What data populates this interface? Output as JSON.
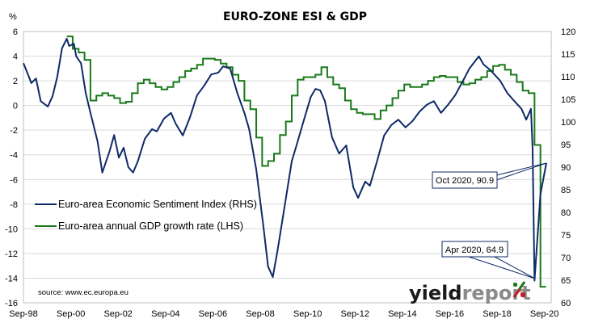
{
  "chart_data": {
    "type": "line",
    "title": "EURO-ZONE ESI & GDP",
    "left_axis": {
      "unit_label": "%",
      "range": [
        -16,
        6
      ],
      "ticks": [
        "6",
        "4",
        "2",
        "0",
        "-2",
        "-4",
        "-6",
        "-8",
        "-10",
        "-12",
        "-14",
        "-16"
      ],
      "tick_values": [
        6,
        4,
        2,
        0,
        -2,
        -4,
        -6,
        -8,
        -10,
        -12,
        -14,
        -16
      ]
    },
    "right_axis": {
      "range": [
        60,
        120
      ],
      "ticks": [
        "120",
        "115",
        "110",
        "105",
        "100",
        "95",
        "90",
        "85",
        "80",
        "75",
        "70",
        "65",
        "60"
      ],
      "tick_values": [
        120,
        115,
        110,
        105,
        100,
        95,
        90,
        85,
        80,
        75,
        70,
        65,
        60
      ]
    },
    "x_axis": {
      "range": [
        1998.67,
        2020.75
      ],
      "ticks": [
        "Sep-98",
        "Sep-00",
        "Sep-02",
        "Sep-04",
        "Sep-06",
        "Sep-08",
        "Sep-10",
        "Sep-12",
        "Sep-14",
        "Sep-16",
        "Sep-18",
        "Sep-20"
      ],
      "tick_values": [
        1998.67,
        2000.67,
        2002.67,
        2004.67,
        2006.67,
        2008.67,
        2010.67,
        2012.67,
        2014.67,
        2016.67,
        2018.67,
        2020.67
      ]
    },
    "grid": true,
    "legend_position": "left-middle",
    "series": [
      {
        "name": "Euro-area Economic Sentiment Index (RHS)",
        "axis": "right",
        "color": "#0f2a66",
        "x": [
          1998.67,
          1998.9,
          1999.0,
          1999.2,
          1999.4,
          1999.7,
          1999.9,
          2000.1,
          2000.3,
          2000.5,
          2000.6,
          2000.8,
          2000.9,
          2001.1,
          2001.3,
          2001.5,
          2001.8,
          2002.0,
          2002.3,
          2002.5,
          2002.7,
          2002.9,
          2003.1,
          2003.3,
          2003.5,
          2003.8,
          2004.1,
          2004.3,
          2004.6,
          2004.9,
          2005.1,
          2005.4,
          2005.7,
          2006.0,
          2006.3,
          2006.6,
          2006.9,
          2007.1,
          2007.4,
          2007.7,
          2008.0,
          2008.2,
          2008.5,
          2008.8,
          2009.0,
          2009.2,
          2009.4,
          2009.7,
          2010.0,
          2010.2,
          2010.5,
          2010.8,
          2011.0,
          2011.2,
          2011.4,
          2011.7,
          2012.0,
          2012.3,
          2012.6,
          2012.8,
          2013.1,
          2013.3,
          2013.6,
          2013.9,
          2014.2,
          2014.5,
          2014.8,
          2015.1,
          2015.4,
          2015.7,
          2016.0,
          2016.3,
          2016.6,
          2016.9,
          2017.2,
          2017.5,
          2017.9,
          2018.1,
          2018.4,
          2018.8,
          2019.1,
          2019.4,
          2019.7,
          2019.9,
          2020.1,
          2020.17,
          2020.25,
          2020.5,
          2020.75
        ],
        "values": [
          113.0,
          110.0,
          108.6,
          109.6,
          104.6,
          103.4,
          105.7,
          110.0,
          116.3,
          118.4,
          116.8,
          117.3,
          114.5,
          113.0,
          106.4,
          102.0,
          95.7,
          88.8,
          93.4,
          97.1,
          92.1,
          94.3,
          90.0,
          88.8,
          91.3,
          96.3,
          98.4,
          97.9,
          100.7,
          102.0,
          99.6,
          97.0,
          101.0,
          105.9,
          108.0,
          110.5,
          110.9,
          112.3,
          111.8,
          106.4,
          102.0,
          98.4,
          89.5,
          77.0,
          68.0,
          65.7,
          71.6,
          81.4,
          91.3,
          94.8,
          100.2,
          105.5,
          107.3,
          107.0,
          104.6,
          96.6,
          93.0,
          94.8,
          85.5,
          83.2,
          86.8,
          85.9,
          91.3,
          97.0,
          99.3,
          100.5,
          98.8,
          100.2,
          102.3,
          103.8,
          104.6,
          102.0,
          103.8,
          105.9,
          108.8,
          111.8,
          114.5,
          112.7,
          111.4,
          109.1,
          106.4,
          104.6,
          102.9,
          100.5,
          102.9,
          94.0,
          64.9,
          84.0,
          90.9
        ]
      },
      {
        "name": "Euro-area annual GDP growth rate (LHS)",
        "axis": "left",
        "color": "#1a7a1a",
        "step": true,
        "x": [
          2000.5,
          2000.75,
          2001.0,
          2001.25,
          2001.5,
          2001.75,
          2002.0,
          2002.25,
          2002.5,
          2002.75,
          2003.0,
          2003.25,
          2003.5,
          2003.75,
          2004.0,
          2004.25,
          2004.5,
          2004.75,
          2005.0,
          2005.25,
          2005.5,
          2005.75,
          2006.0,
          2006.25,
          2006.5,
          2006.75,
          2007.0,
          2007.25,
          2007.5,
          2007.75,
          2008.0,
          2008.25,
          2008.5,
          2008.75,
          2009.0,
          2009.25,
          2009.5,
          2009.75,
          2010.0,
          2010.25,
          2010.5,
          2010.75,
          2011.0,
          2011.25,
          2011.5,
          2011.75,
          2012.0,
          2012.25,
          2012.5,
          2012.75,
          2013.0,
          2013.25,
          2013.5,
          2013.75,
          2014.0,
          2014.25,
          2014.5,
          2014.75,
          2015.0,
          2015.25,
          2015.5,
          2015.75,
          2016.0,
          2016.25,
          2016.5,
          2016.75,
          2017.0,
          2017.25,
          2017.5,
          2017.75,
          2018.0,
          2018.25,
          2018.5,
          2018.75,
          2019.0,
          2019.25,
          2019.5,
          2019.75,
          2020.0,
          2020.25,
          2020.5
        ],
        "values": [
          5.6,
          4.6,
          4.3,
          3.7,
          0.4,
          0.8,
          1.0,
          0.8,
          0.6,
          0.2,
          0.3,
          1.0,
          1.8,
          2.1,
          1.8,
          1.5,
          1.3,
          1.5,
          1.9,
          2.3,
          2.8,
          3.0,
          3.3,
          3.8,
          3.8,
          3.7,
          3.4,
          3.1,
          2.5,
          2.0,
          0.4,
          -0.3,
          -2.6,
          -4.9,
          -4.5,
          -3.9,
          -2.4,
          -1.3,
          0.8,
          2.1,
          2.3,
          2.3,
          2.5,
          3.1,
          2.3,
          1.7,
          1.4,
          0.4,
          -0.3,
          -0.6,
          -0.7,
          -0.7,
          -1.1,
          -0.4,
          0.0,
          0.6,
          1.2,
          1.7,
          1.5,
          1.5,
          1.7,
          2.0,
          2.3,
          2.4,
          2.3,
          2.3,
          1.9,
          1.7,
          1.8,
          2.1,
          2.3,
          2.8,
          3.2,
          3.3,
          2.9,
          2.5,
          1.9,
          1.2,
          1.0,
          -3.2,
          -14.7
        ]
      }
    ],
    "annotations": [
      {
        "label": "Oct 2020, 90.9",
        "x": 2020.75,
        "y": 90.9,
        "axis": "right"
      },
      {
        "label": "Apr 2020, 64.9",
        "x": 2020.25,
        "y": 64.9,
        "axis": "right"
      }
    ],
    "source": "source: www.ec.europa.eu",
    "logo": {
      "part1": "yield",
      "part2": "report",
      "part3": "%"
    },
    "colors": {
      "grid": "#d9d9d9",
      "frame": "#bfbfbf",
      "esi": "#0f2a66",
      "gdp": "#1a7a1a",
      "logo_green": "#1a7a1a",
      "logo_red": "#c0202a"
    }
  }
}
